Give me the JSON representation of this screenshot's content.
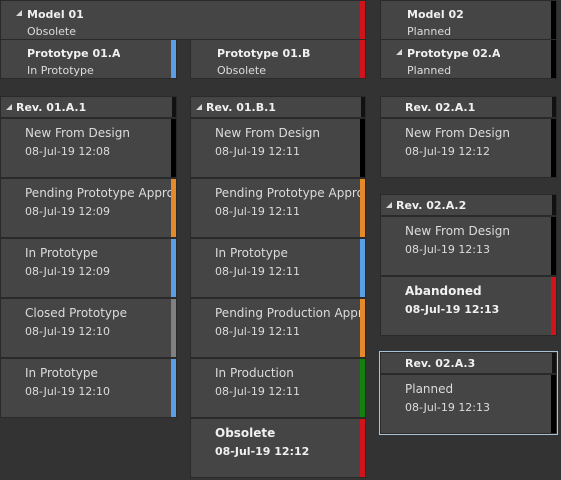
{
  "colors": {
    "black": "#000000",
    "red": "#d0141b",
    "blue": "#5b9ee6",
    "orange": "#e58a2a",
    "gray": "#808080",
    "green": "#13800f",
    "bg": "#333333",
    "card": "#454545"
  },
  "models": [
    {
      "title": "Model 01",
      "status": "Obsolete",
      "bar": "red",
      "collapsible": true
    },
    {
      "title": "Model 02",
      "status": "Planned",
      "bar": "black",
      "collapsible": false
    }
  ],
  "prototypes": [
    {
      "title": "Prototype 01.A",
      "status": "In Prototype",
      "bar": "blue",
      "collapsible": false
    },
    {
      "title": "Prototype 01.B",
      "status": "Obsolete",
      "bar": "red",
      "collapsible": false
    },
    {
      "title": "Prototype 02.A",
      "status": "Planned",
      "bar": "black",
      "collapsible": true
    }
  ],
  "revisions": [
    {
      "title": "Rev. 01.A.1",
      "collapsible": true,
      "events": [
        {
          "state": "New From Design",
          "time": "08-Jul-19 12:08",
          "bar": "black",
          "bold": false
        },
        {
          "state": "Pending Prototype Approva",
          "time": "08-Jul-19 12:09",
          "bar": "orange",
          "bold": false
        },
        {
          "state": "In Prototype",
          "time": "08-Jul-19 12:09",
          "bar": "blue",
          "bold": false
        },
        {
          "state": "Closed Prototype",
          "time": "08-Jul-19 12:10",
          "bar": "gray",
          "bold": false
        },
        {
          "state": "In Prototype",
          "time": "08-Jul-19 12:10",
          "bar": "blue",
          "bold": false
        }
      ]
    },
    {
      "title": "Rev. 01.B.1",
      "collapsible": true,
      "events": [
        {
          "state": "New From Design",
          "time": "08-Jul-19 12:11",
          "bar": "black",
          "bold": false
        },
        {
          "state": "Pending Prototype Approva",
          "time": "08-Jul-19 12:11",
          "bar": "orange",
          "bold": false
        },
        {
          "state": "In Prototype",
          "time": "08-Jul-19 12:11",
          "bar": "blue",
          "bold": false
        },
        {
          "state": "Pending Production Approva",
          "time": "08-Jul-19 12:11",
          "bar": "orange",
          "bold": false
        },
        {
          "state": "In Production",
          "time": "08-Jul-19 12:11",
          "bar": "green",
          "bold": false
        },
        {
          "state": "Obsolete",
          "time": "08-Jul-19 12:12",
          "bar": "red",
          "bold": true
        }
      ]
    },
    {
      "title": "Rev. 02.A.1",
      "collapsible": false,
      "events": [
        {
          "state": "New From Design",
          "time": "08-Jul-19 12:12",
          "bar": "black",
          "bold": false
        }
      ]
    },
    {
      "title": "Rev. 02.A.2",
      "collapsible": true,
      "events": [
        {
          "state": "New From Design",
          "time": "08-Jul-19 12:13",
          "bar": "black",
          "bold": false
        },
        {
          "state": "Abandoned",
          "time": "08-Jul-19 12:13",
          "bar": "red",
          "bold": true
        }
      ]
    },
    {
      "title": "Rev. 02.A.3",
      "collapsible": false,
      "selected": true,
      "events": [
        {
          "state": "Planned",
          "time": "08-Jul-19 12:13",
          "bar": "black",
          "bold": false
        }
      ]
    }
  ]
}
